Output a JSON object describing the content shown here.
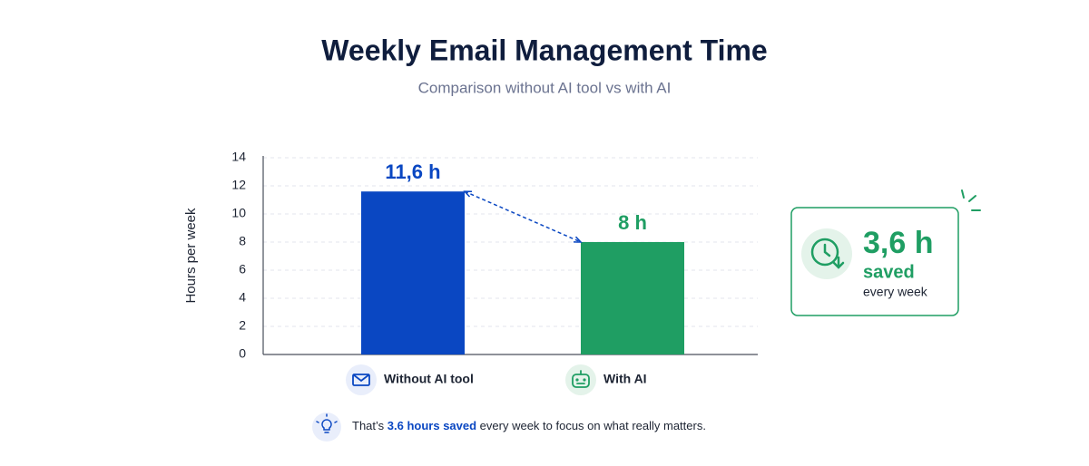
{
  "chart_data": {
    "type": "bar",
    "title": "Weekly Email Management Time",
    "subtitle": "Comparison without AI tool vs with AI",
    "y_label": "Hours per week",
    "categories": [
      "Without AI tool",
      "With AI"
    ],
    "values": [
      11.6,
      8
    ],
    "value_labels": [
      "11,6 h",
      "8 h"
    ],
    "colors": [
      "#0a47c2",
      "#1f9e63"
    ],
    "ylim": [
      0,
      14
    ],
    "yticks": [
      0,
      2,
      4,
      6,
      8,
      10,
      12,
      14
    ],
    "grid": true,
    "annotations": {
      "callout": {
        "value": "3,6 h",
        "label": "saved",
        "note": "every week"
      },
      "footnote": [
        "That’s ",
        "3.6 hours saved",
        " every week to focus on what really matters."
      ]
    }
  }
}
